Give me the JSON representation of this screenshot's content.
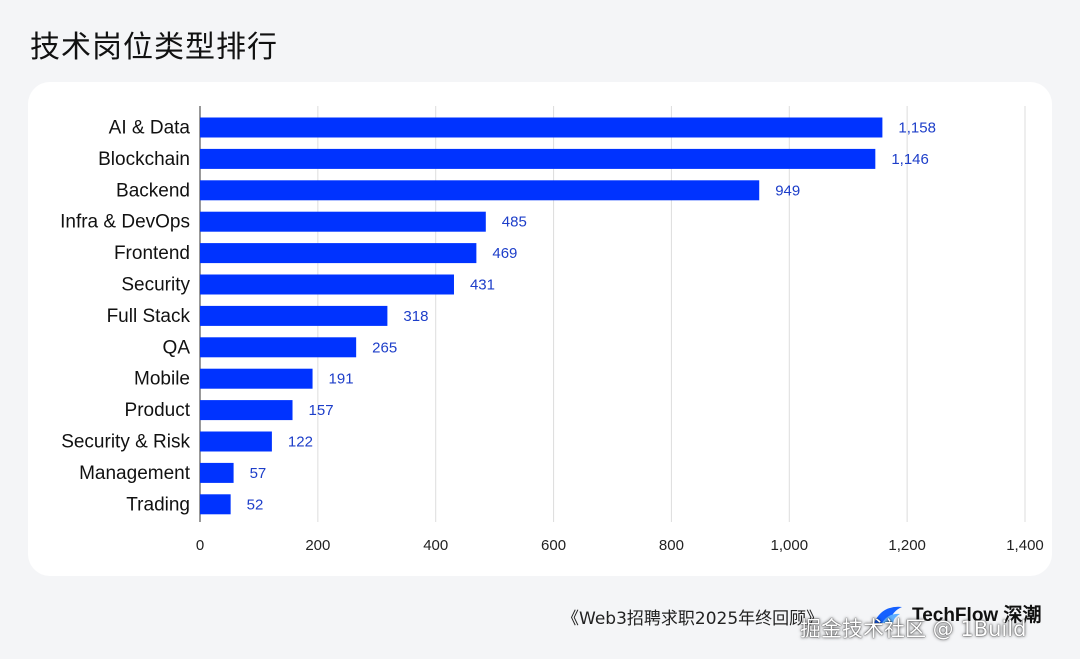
{
  "title": "技术岗位类型排行",
  "footer": {
    "source": "《Web3招聘求职2025年终回顾》",
    "brand": "TechFlow 深潮",
    "watermark": "掘金技术社区 @ 1Build"
  },
  "colors": {
    "bar": "#0033ff",
    "label": "#1d3ec9",
    "grid": "#dddddd",
    "axis": "#555555",
    "card": "#ffffff",
    "background": "#f4f5f7"
  },
  "chart_data": {
    "type": "bar",
    "orientation": "horizontal",
    "categories": [
      "AI & Data",
      "Blockchain",
      "Backend",
      "Infra & DevOps",
      "Frontend",
      "Security",
      "Full Stack",
      "QA",
      "Mobile",
      "Product",
      "Security & Risk",
      "Management",
      "Trading"
    ],
    "values": [
      1158,
      1146,
      949,
      485,
      469,
      431,
      318,
      265,
      191,
      157,
      122,
      57,
      52
    ],
    "value_labels": [
      "1,158",
      "1,146",
      "949",
      "485",
      "469",
      "431",
      "318",
      "265",
      "191",
      "157",
      "122",
      "57",
      "52"
    ],
    "xlim": [
      0,
      1400
    ],
    "xticks": [
      0,
      200,
      400,
      600,
      800,
      1000,
      1200,
      1400
    ],
    "xtick_labels": [
      "0",
      "200",
      "400",
      "600",
      "800",
      "1,000",
      "1,200",
      "1,400"
    ],
    "grid": true
  }
}
